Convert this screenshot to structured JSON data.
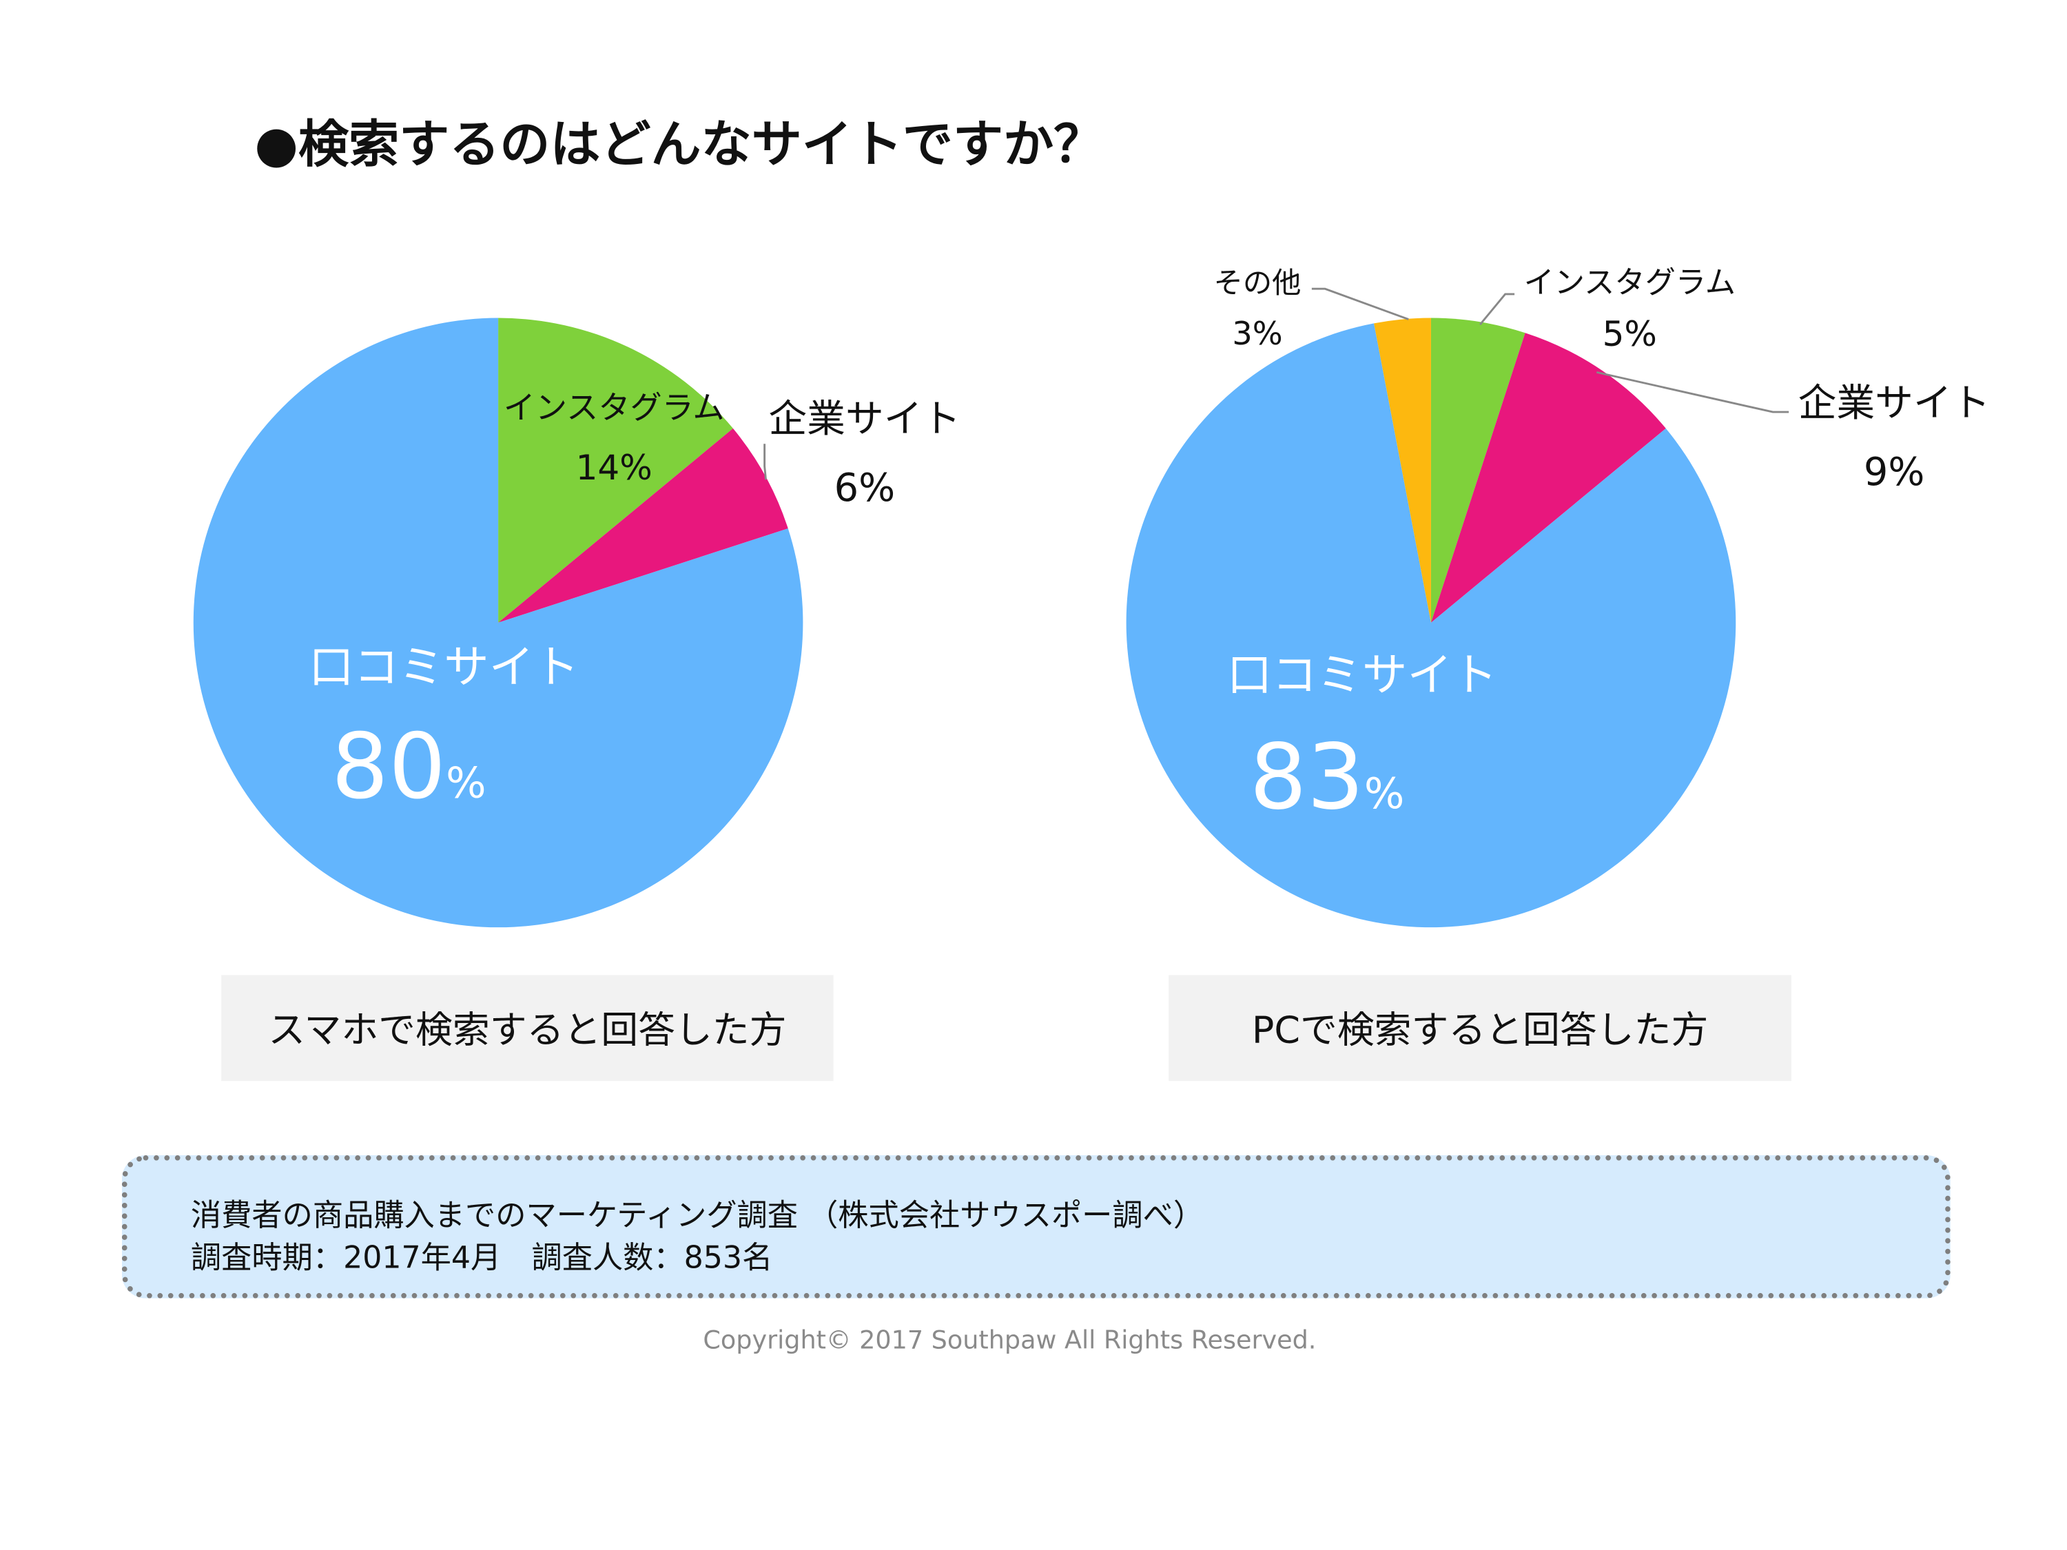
{
  "title": "●検索するのはどんなサイトですか？",
  "chart_data": [
    {
      "type": "pie",
      "title": "スマホで検索すると回答した方",
      "start": "top",
      "direction": "clockwise",
      "slices": [
        {
          "label": "インスタグラム",
          "value": 14,
          "display": "14%",
          "color": "#7fd13b"
        },
        {
          "label": "企業サイト",
          "value": 6,
          "display": "6%",
          "color": "#e8177d"
        },
        {
          "label": "口コミサイト",
          "value": 80,
          "display": "80",
          "unit": "%",
          "color": "#63b5fd"
        }
      ]
    },
    {
      "type": "pie",
      "title": "PCで検索すると回答した方",
      "start": "top",
      "direction": "clockwise",
      "slices": [
        {
          "label": "インスタグラム",
          "value": 5,
          "display": "5%",
          "color": "#7fd13b"
        },
        {
          "label": "企業サイト",
          "value": 9,
          "display": "9%",
          "color": "#e8177d"
        },
        {
          "label": "口コミサイト",
          "value": 83,
          "display": "83",
          "unit": "%",
          "color": "#63b5fd"
        },
        {
          "label": "その他",
          "value": 3,
          "display": "3%",
          "color": "#fdb80f"
        }
      ]
    }
  ],
  "note": {
    "line1": "消費者の商品購入までのマーケティング調査 （株式会社サウスポー調べ）",
    "line2": "調査時期：2017年4月　調査人数：853名"
  },
  "copyright": "Copyright© 2017 Southpaw All Rights Reserved."
}
